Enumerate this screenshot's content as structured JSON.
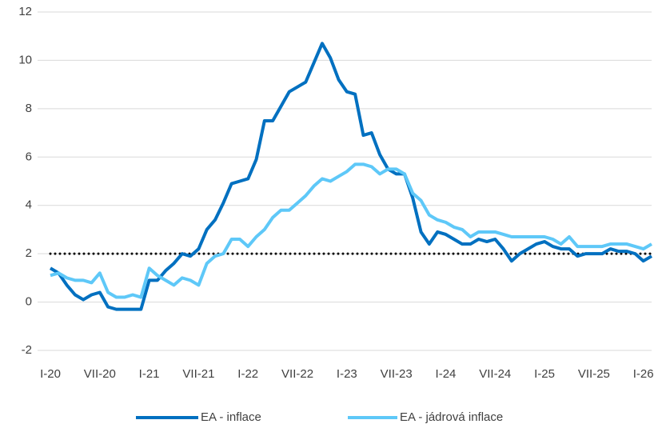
{
  "chart_data": {
    "type": "line",
    "categories": [
      "I-20",
      null,
      null,
      null,
      null,
      null,
      "VII-20",
      null,
      null,
      null,
      null,
      null,
      "I-21",
      null,
      null,
      null,
      null,
      null,
      "VII-21",
      null,
      null,
      null,
      null,
      null,
      "I-22",
      null,
      null,
      null,
      null,
      null,
      "VII-22",
      null,
      null,
      null,
      null,
      null,
      "I-23",
      null,
      null,
      null,
      null,
      null,
      "VII-23",
      null,
      null,
      null,
      null,
      null,
      "I-24",
      null,
      null,
      null,
      null,
      null,
      "VII-24",
      null,
      null,
      null,
      null,
      null,
      "I-25",
      null,
      null,
      null,
      null,
      null,
      "VII-25",
      null,
      null,
      null,
      null,
      null,
      "I-26",
      null
    ],
    "series": [
      {
        "name": "EA - inflace",
        "color": "#0070c0",
        "values": [
          1.4,
          1.2,
          0.7,
          0.3,
          0.1,
          0.3,
          0.4,
          -0.2,
          -0.3,
          -0.3,
          -0.3,
          -0.3,
          0.9,
          0.9,
          1.3,
          1.6,
          2.0,
          1.9,
          2.2,
          3.0,
          3.4,
          4.1,
          4.9,
          5.0,
          5.1,
          5.9,
          7.5,
          7.5,
          8.1,
          8.7,
          8.9,
          9.1,
          9.9,
          10.7,
          10.1,
          9.2,
          8.7,
          8.6,
          6.9,
          7.0,
          6.1,
          5.5,
          5.3,
          5.3,
          4.3,
          2.9,
          2.4,
          2.9,
          2.8,
          2.6,
          2.4,
          2.4,
          2.6,
          2.5,
          2.6,
          2.2,
          1.7,
          2.0,
          2.2,
          2.4,
          2.5,
          2.3,
          2.2,
          2.2,
          1.9,
          2.0,
          2.0,
          2.0,
          2.2,
          2.1,
          2.1,
          2.0,
          1.7,
          1.9
        ]
      },
      {
        "name": "EA - jádrová inflace",
        "color": "#5ec8f8",
        "values": [
          1.1,
          1.2,
          1.0,
          0.9,
          0.9,
          0.8,
          1.2,
          0.4,
          0.2,
          0.2,
          0.3,
          0.2,
          1.4,
          1.1,
          0.9,
          0.7,
          1.0,
          0.9,
          0.7,
          1.6,
          1.9,
          2.0,
          2.6,
          2.6,
          2.3,
          2.7,
          3.0,
          3.5,
          3.8,
          3.8,
          4.1,
          4.4,
          4.8,
          5.1,
          5.0,
          5.2,
          5.4,
          5.7,
          5.7,
          5.6,
          5.3,
          5.5,
          5.5,
          5.3,
          4.5,
          4.2,
          3.6,
          3.4,
          3.3,
          3.1,
          3.0,
          2.7,
          2.9,
          2.9,
          2.9,
          2.8,
          2.7,
          2.7,
          2.7,
          2.7,
          2.7,
          2.6,
          2.4,
          2.7,
          2.3,
          2.3,
          2.3,
          2.3,
          2.4,
          2.4,
          2.4,
          2.3,
          2.2,
          2.4
        ]
      }
    ],
    "ylim": [
      -2,
      12
    ],
    "yticks": [
      -2,
      0,
      2,
      4,
      6,
      8,
      10,
      12
    ],
    "grid": true,
    "hline": 2,
    "legend": "bottom"
  }
}
